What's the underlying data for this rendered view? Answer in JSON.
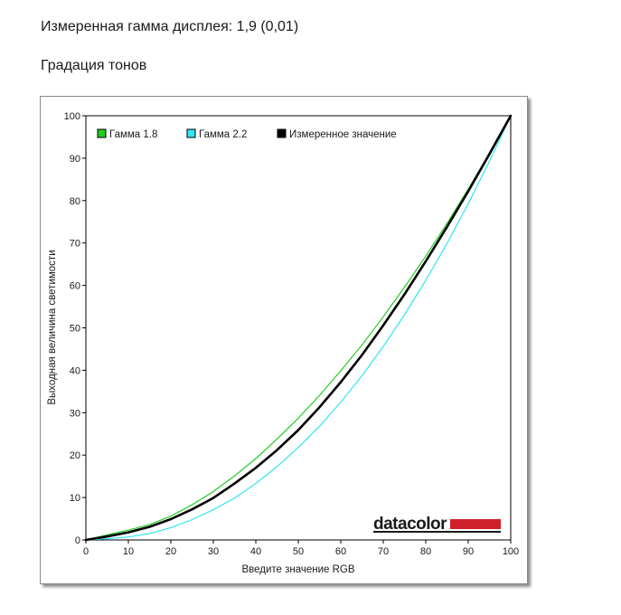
{
  "header": {
    "measured_gamma": "Измеренная гамма дисплея: 1,9 (0,01)",
    "section_title": "Градация тонов"
  },
  "brand": {
    "logo_text": "datacolor",
    "logo_color": "#1a1a1a",
    "bar_color": "#d0202a"
  },
  "chart_data": {
    "type": "line",
    "xlabel": "Введите значение RGB",
    "ylabel": "Выходная величина светимости",
    "xlim": [
      0,
      100
    ],
    "ylim": [
      0,
      100
    ],
    "xticks": [
      0,
      10,
      20,
      30,
      40,
      50,
      60,
      70,
      80,
      90,
      100
    ],
    "yticks": [
      0,
      10,
      20,
      30,
      40,
      50,
      60,
      70,
      80,
      90,
      100
    ],
    "grid": false,
    "legend_position": "top-left",
    "x": [
      0,
      5,
      10,
      15,
      20,
      25,
      30,
      35,
      40,
      45,
      50,
      55,
      60,
      65,
      70,
      75,
      80,
      85,
      90,
      95,
      100
    ],
    "series": [
      {
        "name": "Гамма 1.8",
        "color": "#22cc22",
        "width": 1.2,
        "values": [
          0,
          1.2,
          2.3,
          3.6,
          5.6,
          8.3,
          11.4,
          15.1,
          19.2,
          23.8,
          28.7,
          34.1,
          39.9,
          46.0,
          52.6,
          59.6,
          66.9,
          74.6,
          82.7,
          91.2,
          100
        ]
      },
      {
        "name": "Гамма 2.2",
        "color": "#33e6f0",
        "width": 1.2,
        "values": [
          0,
          0.3,
          0.7,
          1.5,
          2.9,
          4.8,
          7.1,
          9.9,
          13.3,
          17.3,
          21.8,
          26.8,
          32.5,
          38.7,
          45.6,
          53.1,
          61.2,
          69.9,
          79.3,
          89.3,
          100
        ]
      },
      {
        "name": "Измеренное значение",
        "color": "#000000",
        "width": 2.6,
        "values": [
          0,
          0.8,
          1.8,
          3.1,
          4.9,
          7.2,
          9.9,
          13.3,
          17.0,
          21.2,
          25.9,
          31.3,
          37.2,
          43.6,
          50.6,
          57.9,
          65.7,
          73.8,
          82.2,
          91.0,
          100
        ]
      }
    ]
  }
}
